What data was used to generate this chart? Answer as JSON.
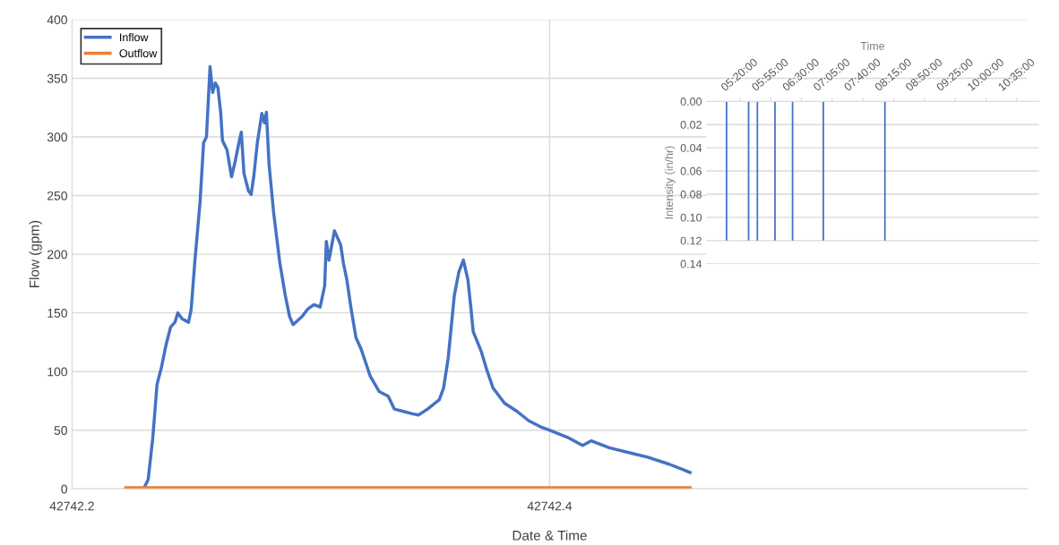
{
  "chart_data": [
    {
      "type": "line",
      "xlabel": "Date & Time",
      "ylabel": "Flow (gpm)",
      "xlim": [
        42742.2,
        42742.6
      ],
      "xticks": [
        42742.2,
        42742.4
      ],
      "ylim": [
        0,
        400
      ],
      "yticks": [
        0,
        50,
        100,
        150,
        200,
        250,
        300,
        350,
        400
      ],
      "grid": true,
      "legend": "top left",
      "marker": "none",
      "line_style": "solid",
      "series": [
        {
          "name": "Inflow",
          "color": "#4472c4",
          "x": [
            42742.23,
            42742.2319,
            42742.2338,
            42742.2356,
            42742.2375,
            42742.2394,
            42742.2413,
            42742.2431,
            42742.2443,
            42742.2461,
            42742.2488,
            42742.2499,
            42742.2514,
            42742.2536,
            42742.2551,
            42742.2563,
            42742.2578,
            42742.2589,
            42742.26,
            42742.2611,
            42742.2623,
            42742.263,
            42742.2649,
            42742.2668,
            42742.2683,
            42742.2701,
            42742.2709,
            42742.272,
            42742.2739,
            42742.275,
            42742.2761,
            42742.2776,
            42742.2795,
            42742.2806,
            42742.2814,
            42742.2825,
            42742.2844,
            42742.287,
            42742.2893,
            42742.2911,
            42742.2926,
            42742.2964,
            42742.2986,
            42742.3013,
            42742.3039,
            42742.3058,
            42742.3065,
            42742.3076,
            42742.3099,
            42742.3125,
            42742.3136,
            42742.3151,
            42742.317,
            42742.3189,
            42742.3211,
            42742.3249,
            42742.3286,
            42742.3324,
            42742.335,
            42742.3388,
            42742.3425,
            42742.3451,
            42742.3489,
            42742.3538,
            42742.3556,
            42742.3575,
            42742.3601,
            42742.362,
            42742.3639,
            42742.3658,
            42742.3669,
            42742.368,
            42742.3714,
            42742.3736,
            42742.3763,
            42742.3811,
            42742.3864,
            42742.3913,
            42742.3961,
            42742.3999,
            42742.4074,
            42742.4138,
            42742.4175,
            42742.425,
            42742.4351,
            42742.4411,
            42742.4501,
            42742.4588
          ],
          "values": [
            0,
            8,
            43,
            89,
            104,
            123,
            138,
            142,
            150,
            145,
            142,
            153,
            193,
            244,
            295,
            300,
            360,
            338,
            346,
            342,
            320,
            297,
            289,
            266,
            279,
            297,
            304,
            269,
            254,
            251,
            266,
            295,
            320,
            312,
            321,
            277,
            236,
            193,
            165,
            147,
            140,
            147,
            153,
            157,
            155,
            173,
            211,
            195,
            220,
            208,
            193,
            178,
            152,
            129,
            119,
            96,
            83,
            79,
            68,
            66,
            64,
            63,
            68,
            76,
            86,
            111,
            165,
            185,
            195,
            178,
            157,
            134,
            117,
            102,
            86,
            73,
            66,
            58,
            53,
            50,
            44,
            37,
            41,
            35,
            30,
            27,
            21,
            14
          ]
        },
        {
          "name": "Outflow",
          "color": "#ed7d31",
          "x": [
            42742.2225,
            42742.4588
          ],
          "values": [
            1,
            1
          ]
        }
      ]
    },
    {
      "type": "bar",
      "xlabel": "Time",
      "ylabel": "Intensity (in/hr)",
      "xlim": [
        4.7,
        11.0
      ],
      "xticks": [
        {
          "value": 5.3333,
          "label": "05:20:00"
        },
        {
          "value": 5.9167,
          "label": "05:55:00"
        },
        {
          "value": 6.5,
          "label": "06:30:00"
        },
        {
          "value": 7.0833,
          "label": "07:05:00"
        },
        {
          "value": 7.6667,
          "label": "07:40:00"
        },
        {
          "value": 8.25,
          "label": "08:15:00"
        },
        {
          "value": 8.8333,
          "label": "08:50:00"
        },
        {
          "value": 9.4167,
          "label": "09:25:00"
        },
        {
          "value": 10.0,
          "label": "10:00:00"
        },
        {
          "value": 10.5833,
          "label": "10:35:00"
        }
      ],
      "ylim": [
        0.14,
        0.0
      ],
      "yticks": [
        {
          "value": 0,
          "label": "0.00"
        },
        {
          "value": 0.02,
          "label": "0.02"
        },
        {
          "value": 0.04,
          "label": "0.04"
        },
        {
          "value": 0.06,
          "label": "0.06"
        },
        {
          "value": 0.08,
          "label": "0.08"
        },
        {
          "value": 0.1,
          "label": "0.10"
        },
        {
          "value": 0.12,
          "label": "0.12"
        },
        {
          "value": 0.14,
          "label": "0.14"
        }
      ],
      "grid": "y",
      "color": "#4472c4",
      "x": [
        5.0833,
        5.5,
        5.6667,
        6.0,
        6.3333,
        6.9167,
        8.0833
      ],
      "values": [
        0.12,
        0.12,
        0.12,
        0.12,
        0.12,
        0.12,
        0.12
      ]
    }
  ]
}
